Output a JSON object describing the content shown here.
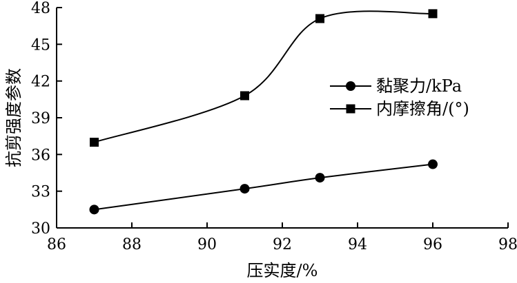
{
  "chart_data": {
    "type": "line",
    "title": "",
    "xlabel": "压实度/%",
    "ylabel": "抗剪强度参数",
    "xlim": [
      86,
      98
    ],
    "ylim": [
      30,
      48
    ],
    "xticks": [
      86,
      88,
      90,
      92,
      94,
      96,
      98
    ],
    "yticks": [
      30,
      33,
      36,
      39,
      42,
      45,
      48
    ],
    "grid": false,
    "legend_position": "right",
    "series": [
      {
        "name": "黏聚力/kPa",
        "marker": "circle",
        "color": "#000000",
        "x": [
          87,
          91,
          93,
          96
        ],
        "y": [
          31.5,
          33.2,
          34.1,
          35.2
        ]
      },
      {
        "name": "内摩擦角/(°)",
        "marker": "square",
        "color": "#000000",
        "x": [
          87,
          91,
          93,
          96
        ],
        "y": [
          37.0,
          40.8,
          47.1,
          47.5
        ]
      }
    ]
  }
}
